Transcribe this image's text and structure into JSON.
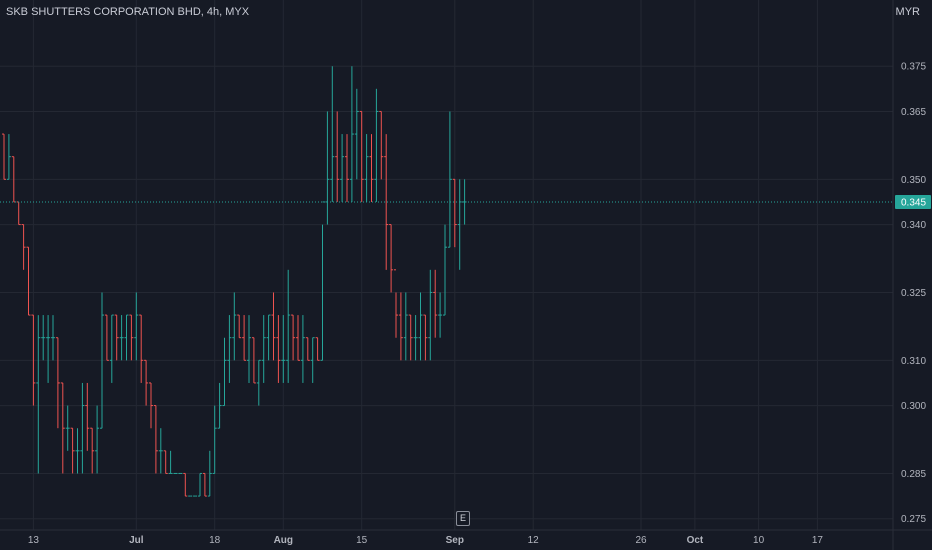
{
  "header": {
    "title": "SKB SHUTTERS CORPORATION BHD, 4h, MYX",
    "currency": "MYR"
  },
  "event_marker": {
    "label": "E"
  },
  "colors": {
    "up": "#26a69a",
    "down": "#ef5350",
    "background": "#161a25",
    "grid": "#242833",
    "last_price": "#26a69a"
  },
  "chart_data": {
    "type": "bar",
    "style": "OHLC bars (4h)",
    "yaxis": {
      "ticks": [
        0.275,
        0.285,
        0.3,
        0.31,
        0.325,
        0.34,
        0.35,
        0.365,
        0.375
      ],
      "range": [
        0.272,
        0.382
      ],
      "position": "right"
    },
    "xaxis": {
      "ticks": [
        {
          "label": "13",
          "bold": false,
          "index": 6
        },
        {
          "label": "Jul",
          "bold": true,
          "index": 27
        },
        {
          "label": "18",
          "bold": false,
          "index": 43
        },
        {
          "label": "Aug",
          "bold": true,
          "index": 57
        },
        {
          "label": "15",
          "bold": false,
          "index": 73
        },
        {
          "label": "Sep",
          "bold": true,
          "index": 92
        },
        {
          "label": "12",
          "bold": false,
          "index": 108
        },
        {
          "label": "26",
          "bold": false,
          "index": 130
        },
        {
          "label": "Oct",
          "bold": true,
          "index": 141
        },
        {
          "label": "10",
          "bold": false,
          "index": 154
        },
        {
          "label": "17",
          "bold": false,
          "index": 166
        }
      ]
    },
    "last_price": {
      "value": "0.345"
    },
    "grid": true,
    "bars": [
      [
        0.36,
        0.36,
        0.35,
        0.35
      ],
      [
        0.35,
        0.36,
        0.35,
        0.355
      ],
      [
        0.355,
        0.355,
        0.345,
        0.345
      ],
      [
        0.345,
        0.345,
        0.34,
        0.34
      ],
      [
        0.34,
        0.34,
        0.33,
        0.335
      ],
      [
        0.335,
        0.335,
        0.32,
        0.32
      ],
      [
        0.32,
        0.32,
        0.3,
        0.305
      ],
      [
        0.305,
        0.32,
        0.285,
        0.315
      ],
      [
        0.315,
        0.32,
        0.31,
        0.315
      ],
      [
        0.315,
        0.32,
        0.305,
        0.315
      ],
      [
        0.315,
        0.32,
        0.31,
        0.315
      ],
      [
        0.315,
        0.315,
        0.295,
        0.305
      ],
      [
        0.305,
        0.305,
        0.285,
        0.295
      ],
      [
        0.295,
        0.3,
        0.29,
        0.295
      ],
      [
        0.295,
        0.295,
        0.285,
        0.29
      ],
      [
        0.29,
        0.295,
        0.285,
        0.29
      ],
      [
        0.29,
        0.305,
        0.285,
        0.3
      ],
      [
        0.3,
        0.305,
        0.29,
        0.295
      ],
      [
        0.295,
        0.295,
        0.285,
        0.29
      ],
      [
        0.29,
        0.3,
        0.285,
        0.295
      ],
      [
        0.295,
        0.325,
        0.295,
        0.32
      ],
      [
        0.32,
        0.32,
        0.31,
        0.31
      ],
      [
        0.31,
        0.32,
        0.305,
        0.32
      ],
      [
        0.32,
        0.32,
        0.31,
        0.315
      ],
      [
        0.315,
        0.32,
        0.31,
        0.315
      ],
      [
        0.315,
        0.32,
        0.31,
        0.32
      ],
      [
        0.32,
        0.32,
        0.31,
        0.315
      ],
      [
        0.315,
        0.325,
        0.31,
        0.32
      ],
      [
        0.32,
        0.32,
        0.305,
        0.31
      ],
      [
        0.31,
        0.31,
        0.3,
        0.305
      ],
      [
        0.305,
        0.305,
        0.295,
        0.3
      ],
      [
        0.3,
        0.3,
        0.285,
        0.29
      ],
      [
        0.29,
        0.295,
        0.285,
        0.29
      ],
      [
        0.29,
        0.29,
        0.285,
        0.285
      ],
      [
        0.285,
        0.29,
        0.285,
        0.285
      ],
      [
        0.285,
        0.285,
        0.285,
        0.285
      ],
      [
        0.285,
        0.285,
        0.285,
        0.285
      ],
      [
        0.285,
        0.285,
        0.28,
        0.28
      ],
      [
        0.28,
        0.28,
        0.28,
        0.28
      ],
      [
        0.28,
        0.28,
        0.28,
        0.28
      ],
      [
        0.28,
        0.285,
        0.28,
        0.285
      ],
      [
        0.285,
        0.285,
        0.28,
        0.28
      ],
      [
        0.28,
        0.29,
        0.28,
        0.285
      ],
      [
        0.285,
        0.3,
        0.285,
        0.295
      ],
      [
        0.295,
        0.305,
        0.295,
        0.3
      ],
      [
        0.3,
        0.315,
        0.3,
        0.31
      ],
      [
        0.31,
        0.32,
        0.305,
        0.315
      ],
      [
        0.315,
        0.325,
        0.31,
        0.32
      ],
      [
        0.32,
        0.32,
        0.315,
        0.315
      ],
      [
        0.315,
        0.32,
        0.31,
        0.31
      ],
      [
        0.31,
        0.32,
        0.305,
        0.315
      ],
      [
        0.315,
        0.315,
        0.305,
        0.305
      ],
      [
        0.305,
        0.31,
        0.3,
        0.31
      ],
      [
        0.31,
        0.32,
        0.305,
        0.315
      ],
      [
        0.315,
        0.32,
        0.31,
        0.32
      ],
      [
        0.32,
        0.325,
        0.31,
        0.315
      ],
      [
        0.315,
        0.32,
        0.305,
        0.31
      ],
      [
        0.31,
        0.32,
        0.305,
        0.31
      ],
      [
        0.31,
        0.33,
        0.305,
        0.32
      ],
      [
        0.32,
        0.32,
        0.31,
        0.315
      ],
      [
        0.315,
        0.32,
        0.31,
        0.31
      ],
      [
        0.31,
        0.32,
        0.305,
        0.315
      ],
      [
        0.315,
        0.315,
        0.31,
        0.31
      ],
      [
        0.31,
        0.315,
        0.305,
        0.315
      ],
      [
        0.315,
        0.315,
        0.31,
        0.31
      ],
      [
        0.31,
        0.34,
        0.31,
        0.345
      ],
      [
        0.345,
        0.365,
        0.34,
        0.35
      ],
      [
        0.35,
        0.375,
        0.345,
        0.355
      ],
      [
        0.355,
        0.365,
        0.345,
        0.35
      ],
      [
        0.35,
        0.36,
        0.345,
        0.355
      ],
      [
        0.355,
        0.36,
        0.345,
        0.35
      ],
      [
        0.35,
        0.375,
        0.345,
        0.36
      ],
      [
        0.36,
        0.37,
        0.35,
        0.365
      ],
      [
        0.365,
        0.365,
        0.345,
        0.35
      ],
      [
        0.35,
        0.36,
        0.345,
        0.355
      ],
      [
        0.355,
        0.36,
        0.345,
        0.35
      ],
      [
        0.35,
        0.37,
        0.345,
        0.365
      ],
      [
        0.365,
        0.365,
        0.35,
        0.355
      ],
      [
        0.355,
        0.36,
        0.33,
        0.34
      ],
      [
        0.34,
        0.34,
        0.325,
        0.33
      ],
      [
        0.33,
        0.325,
        0.315,
        0.32
      ],
      [
        0.32,
        0.325,
        0.31,
        0.315
      ],
      [
        0.315,
        0.325,
        0.31,
        0.32
      ],
      [
        0.32,
        0.32,
        0.31,
        0.315
      ],
      [
        0.315,
        0.32,
        0.31,
        0.315
      ],
      [
        0.315,
        0.325,
        0.31,
        0.32
      ],
      [
        0.32,
        0.32,
        0.31,
        0.315
      ],
      [
        0.315,
        0.33,
        0.31,
        0.325
      ],
      [
        0.325,
        0.33,
        0.315,
        0.32
      ],
      [
        0.32,
        0.325,
        0.315,
        0.32
      ],
      [
        0.32,
        0.34,
        0.32,
        0.335
      ],
      [
        0.335,
        0.365,
        0.335,
        0.35
      ],
      [
        0.35,
        0.35,
        0.335,
        0.34
      ],
      [
        0.34,
        0.35,
        0.33,
        0.345
      ],
      [
        0.345,
        0.35,
        0.34,
        0.345
      ]
    ]
  }
}
